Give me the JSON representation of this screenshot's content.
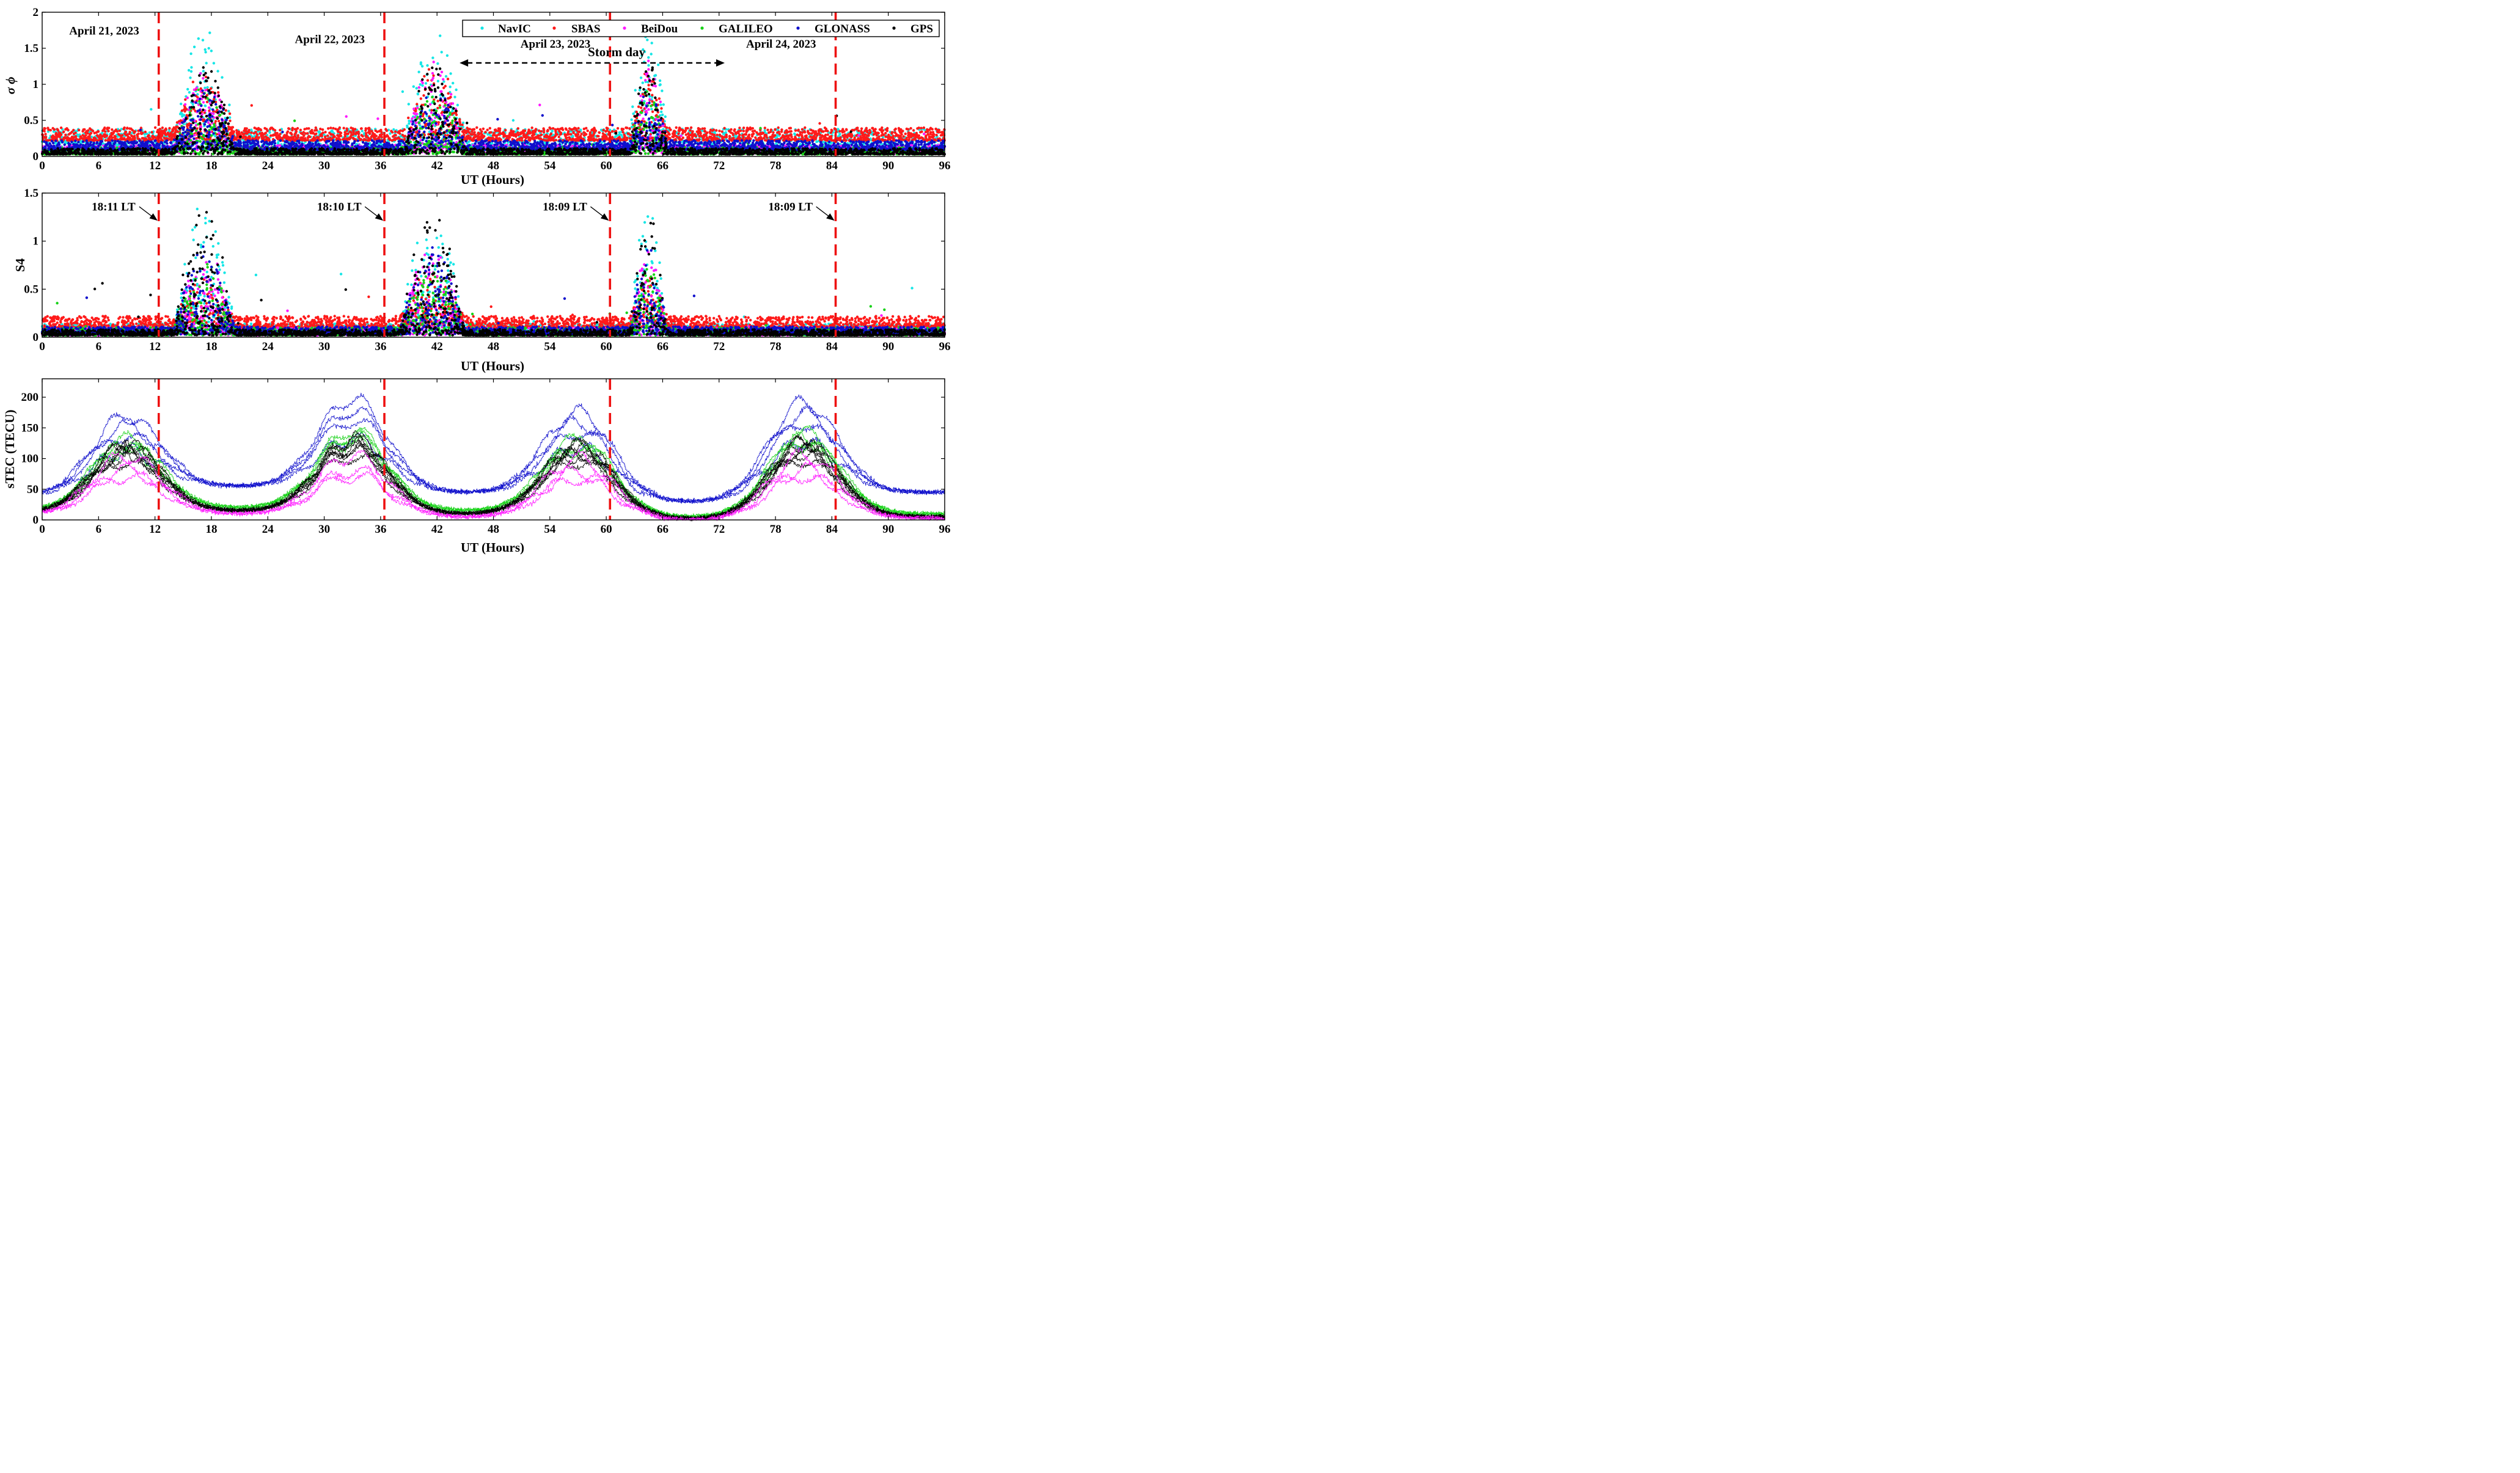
{
  "chart_data": [
    {
      "type": "scatter",
      "panel": "phase-scintillation",
      "ylabel": "σ ϕ",
      "xlabel": "UT (Hours)",
      "xlim": [
        0,
        96
      ],
      "ylim": [
        0,
        2
      ],
      "xticks": [
        0,
        6,
        12,
        18,
        24,
        30,
        36,
        42,
        48,
        54,
        60,
        66,
        72,
        78,
        84,
        90,
        96
      ],
      "yticks": [
        "0",
        "0.5",
        "1",
        "1.5",
        "2"
      ],
      "sunset_lines_ut": [
        12.4,
        36.4,
        60.4,
        84.4
      ],
      "date_labels": [
        {
          "text": "April 21, 2023",
          "x": 6.6,
          "y": 1.69
        },
        {
          "text": "April 22, 2023",
          "x": 30.6,
          "y": 1.57
        },
        {
          "text": "April 23, 2023",
          "x": 54.6,
          "y": 1.51
        },
        {
          "text": "April 24, 2023",
          "x": 78.6,
          "y": 1.51
        }
      ],
      "storm_label": "Storm day",
      "storm_span_ut": [
        44.4,
        72.6
      ],
      "legend": [
        "NavIC",
        "SBAS",
        "BeiDou",
        "GALILEO",
        "GLONASS",
        "GPS"
      ],
      "series": [
        {
          "name": "NavIC",
          "color": "#17e6e6",
          "base": 0.1,
          "spread": 0.28,
          "scint_peak": 1.6
        },
        {
          "name": "SBAS",
          "color": "#ff1a1a",
          "base": 0.22,
          "spread": 0.18,
          "scint_peak": 0.9
        },
        {
          "name": "BeiDou",
          "color": "#ff19ff",
          "base": 0.04,
          "spread": 0.12,
          "scint_peak": 1.2
        },
        {
          "name": "GALILEO",
          "color": "#19d219",
          "base": 0.03,
          "spread": 0.1,
          "scint_peak": 0.9
        },
        {
          "name": "GLONASS",
          "color": "#1010cc",
          "base": 0.09,
          "spread": 0.13,
          "scint_peak": 0.8
        },
        {
          "name": "GPS",
          "color": "#000000",
          "base": 0.03,
          "spread": 0.08,
          "scint_peak": 1.25
        }
      ],
      "scintillation_windows_ut": [
        [
          14,
          20.5
        ],
        [
          38.5,
          45
        ],
        [
          62.5,
          66.5
        ]
      ]
    },
    {
      "type": "scatter",
      "panel": "amplitude-scintillation",
      "ylabel": "S4",
      "xlabel": "UT (Hours)",
      "xlim": [
        0,
        96
      ],
      "ylim": [
        0,
        1.5
      ],
      "xticks": [
        0,
        6,
        12,
        18,
        24,
        30,
        36,
        42,
        48,
        54,
        60,
        66,
        72,
        78,
        84,
        90,
        96
      ],
      "yticks": [
        "0",
        "0.5",
        "1",
        "1.5"
      ],
      "sunset_lines_ut": [
        12.4,
        36.4,
        60.4,
        84.4
      ],
      "lt_annotations": [
        {
          "text": "18:11 LT",
          "x": 7.6,
          "y": 1.32,
          "arrow_to_ut": 12.4
        },
        {
          "text": "18:10 LT",
          "x": 31.6,
          "y": 1.32,
          "arrow_to_ut": 36.4
        },
        {
          "text": "18:09 LT",
          "x": 55.6,
          "y": 1.32,
          "arrow_to_ut": 60.4
        },
        {
          "text": "18:09 LT",
          "x": 79.6,
          "y": 1.32,
          "arrow_to_ut": 84.4
        }
      ],
      "series": [
        {
          "name": "NavIC",
          "color": "#17e6e6",
          "base": 0.04,
          "spread": 0.1,
          "scint_peak": 1.3
        },
        {
          "name": "SBAS",
          "color": "#ff1a1a",
          "base": 0.1,
          "spread": 0.12,
          "scint_peak": 0.5
        },
        {
          "name": "BeiDou",
          "color": "#ff19ff",
          "base": 0.02,
          "spread": 0.08,
          "scint_peak": 0.9
        },
        {
          "name": "GALILEO",
          "color": "#19d219",
          "base": 0.02,
          "spread": 0.08,
          "scint_peak": 0.7
        },
        {
          "name": "GLONASS",
          "color": "#1010cc",
          "base": 0.03,
          "spread": 0.08,
          "scint_peak": 0.9
        },
        {
          "name": "GPS",
          "color": "#000000",
          "base": 0.02,
          "spread": 0.06,
          "scint_peak": 1.28
        }
      ],
      "scintillation_windows_ut": [
        [
          14,
          20.5
        ],
        [
          38,
          45
        ],
        [
          62.5,
          66.5
        ]
      ]
    },
    {
      "type": "line",
      "panel": "slant-tec",
      "ylabel": "sTEC (TECU)",
      "xlabel": "UT (Hours)",
      "xlim": [
        0,
        96
      ],
      "ylim": [
        0,
        230
      ],
      "xticks": [
        0,
        6,
        12,
        18,
        24,
        30,
        36,
        42,
        48,
        54,
        60,
        66,
        72,
        78,
        84,
        90,
        96
      ],
      "yticks": [
        "0",
        "50",
        "100",
        "150",
        "200"
      ],
      "sunset_lines_ut": [
        12.4,
        36.4,
        60.4,
        84.4
      ],
      "series": [
        {
          "name": "GLONASS",
          "color": "#1010cc",
          "night_levels": [
            40,
            55,
            45,
            30,
            45
          ],
          "day_levels": [
            150,
            175,
            155,
            170
          ],
          "n_tracks": 4
        },
        {
          "name": "GALILEO",
          "color": "#19d219",
          "night_levels": [
            15,
            20,
            15,
            5,
            10
          ],
          "day_levels": [
            125,
            140,
            125,
            135
          ],
          "n_tracks": 4
        },
        {
          "name": "GPS",
          "color": "#000000",
          "night_levels": [
            12,
            15,
            10,
            2,
            5
          ],
          "day_levels": [
            120,
            130,
            120,
            125
          ],
          "n_tracks": 7
        },
        {
          "name": "BeiDou",
          "color": "#ff19ff",
          "night_levels": [
            8,
            10,
            5,
            0,
            3
          ],
          "day_levels": [
            95,
            95,
            90,
            95
          ],
          "n_tracks": 3
        }
      ]
    }
  ]
}
